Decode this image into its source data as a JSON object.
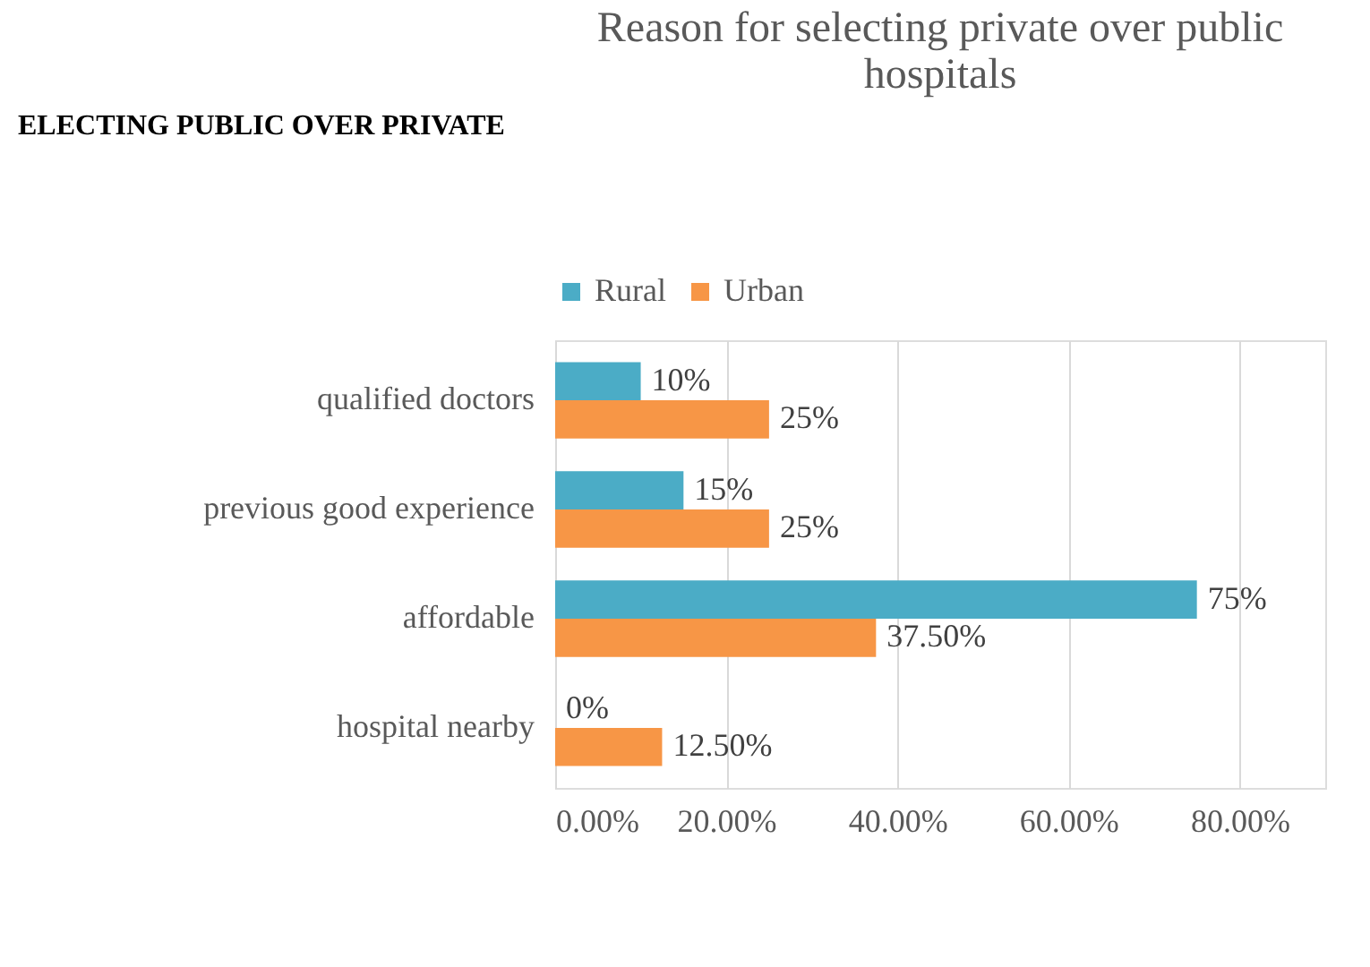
{
  "chart_data": {
    "type": "bar",
    "orientation": "horizontal",
    "title": "Reason for selecting private over public hospitals",
    "annotations": [
      "ELECTING PUBLIC OVER PRIVATE"
    ],
    "categories": [
      "qualified doctors",
      "previous good experience",
      "affordable",
      "hospital nearby"
    ],
    "series": [
      {
        "name": "Rural",
        "color": "#4bacc6",
        "values": [
          10,
          15,
          75,
          0
        ],
        "value_labels": [
          "10%",
          "15%",
          "75%",
          "0%"
        ]
      },
      {
        "name": "Urban",
        "color": "#f79646",
        "values": [
          25,
          25,
          37.5,
          12.5
        ],
        "value_labels": [
          "25%",
          "25%",
          "37.50%",
          "12.50%"
        ]
      }
    ],
    "xlim": [
      0,
      90
    ],
    "xticks": [
      {
        "value": 0,
        "label": "0.00%"
      },
      {
        "value": 20,
        "label": "20.00%"
      },
      {
        "value": 40,
        "label": "40.00%"
      },
      {
        "value": 60,
        "label": "60.00%"
      },
      {
        "value": 80,
        "label": "80.00%"
      }
    ],
    "grid": "x",
    "legend": "top"
  }
}
